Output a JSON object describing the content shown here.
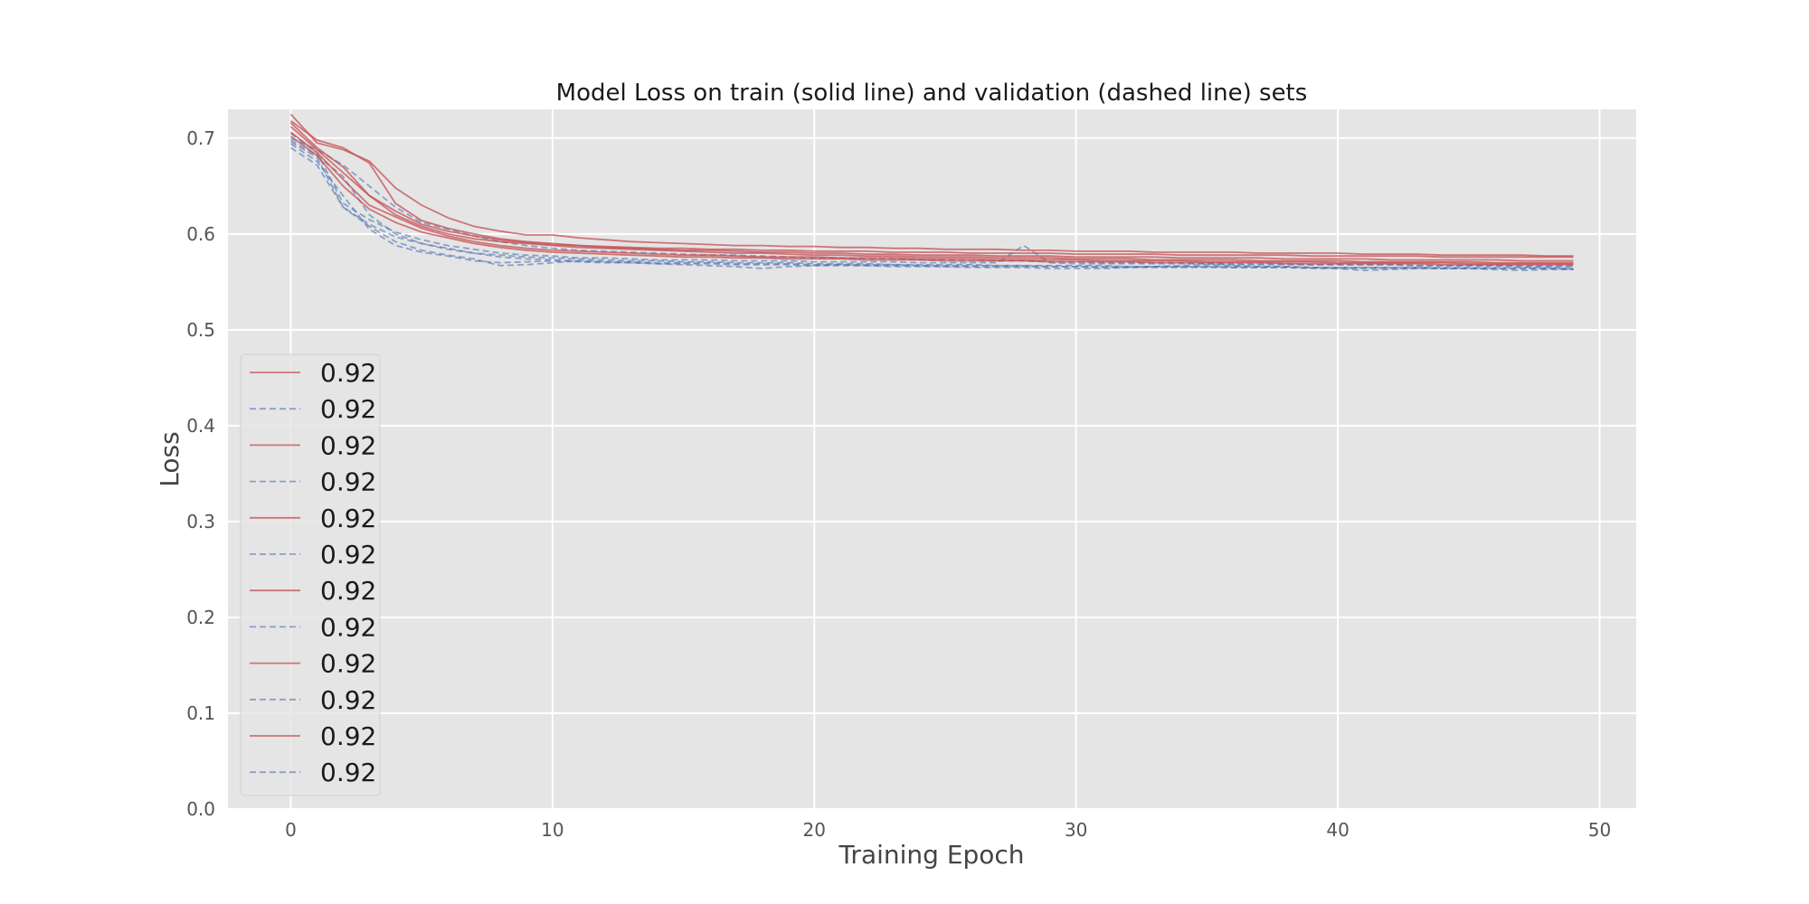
{
  "chart_data": {
    "type": "line",
    "title": "Model Loss on train (solid line) and validation (dashed line) sets",
    "xlabel": "Training Epoch",
    "ylabel": "Loss",
    "xlim": [
      -2.4,
      51.4
    ],
    "ylim": [
      0.0,
      0.73
    ],
    "xticks": [
      0,
      10,
      20,
      30,
      40,
      50
    ],
    "yticks": [
      0.0,
      0.1,
      0.2,
      0.3,
      0.4,
      0.5,
      0.6,
      0.7
    ],
    "grid": true,
    "legend_position": "lower-left",
    "train_color": "#c44e52",
    "val_color": "#4c72b0",
    "x": [
      0,
      1,
      2,
      3,
      4,
      5,
      6,
      7,
      8,
      9,
      10,
      11,
      12,
      13,
      14,
      15,
      16,
      17,
      18,
      19,
      20,
      21,
      22,
      23,
      24,
      25,
      26,
      27,
      28,
      29,
      30,
      31,
      32,
      33,
      34,
      35,
      36,
      37,
      38,
      39,
      40,
      41,
      42,
      43,
      44,
      45,
      46,
      47,
      48,
      49
    ],
    "series": [
      {
        "name": "0.92",
        "split": "train",
        "values": [
          0.725,
          0.695,
          0.688,
          0.676,
          0.648,
          0.63,
          0.617,
          0.608,
          0.603,
          0.599,
          0.599,
          0.596,
          0.594,
          0.592,
          0.591,
          0.59,
          0.589,
          0.588,
          0.588,
          0.587,
          0.587,
          0.586,
          0.586,
          0.585,
          0.585,
          0.584,
          0.584,
          0.584,
          0.583,
          0.583,
          0.582,
          0.582,
          0.582,
          0.581,
          0.581,
          0.581,
          0.581,
          0.58,
          0.58,
          0.58,
          0.58,
          0.579,
          0.579,
          0.579,
          0.578,
          0.578,
          0.578,
          0.578,
          0.577,
          0.577
        ]
      },
      {
        "name": "0.92",
        "split": "val",
        "values": [
          0.7,
          0.688,
          0.672,
          0.65,
          0.628,
          0.612,
          0.605,
          0.598,
          0.592,
          0.588,
          0.585,
          0.583,
          0.582,
          0.581,
          0.58,
          0.579,
          0.578,
          0.578,
          0.577,
          0.576,
          0.575,
          0.575,
          0.574,
          0.574,
          0.573,
          0.573,
          0.572,
          0.572,
          0.572,
          0.571,
          0.571,
          0.57,
          0.57,
          0.57,
          0.57,
          0.569,
          0.569,
          0.569,
          0.569,
          0.568,
          0.568,
          0.568,
          0.568,
          0.567,
          0.567,
          0.567,
          0.567,
          0.566,
          0.566,
          0.566
        ]
      },
      {
        "name": "0.92",
        "split": "train",
        "values": [
          0.718,
          0.698,
          0.69,
          0.674,
          0.632,
          0.614,
          0.606,
          0.6,
          0.595,
          0.592,
          0.59,
          0.588,
          0.586,
          0.585,
          0.584,
          0.583,
          0.583,
          0.582,
          0.581,
          0.581,
          0.58,
          0.58,
          0.579,
          0.579,
          0.578,
          0.578,
          0.578,
          0.577,
          0.577,
          0.577,
          0.576,
          0.576,
          0.576,
          0.576,
          0.575,
          0.575,
          0.575,
          0.575,
          0.574,
          0.574,
          0.574,
          0.574,
          0.573,
          0.573,
          0.573,
          0.573,
          0.573,
          0.572,
          0.572,
          0.572
        ]
      },
      {
        "name": "0.92",
        "split": "val",
        "values": [
          0.705,
          0.685,
          0.632,
          0.615,
          0.602,
          0.594,
          0.588,
          0.584,
          0.58,
          0.578,
          0.577,
          0.575,
          0.575,
          0.574,
          0.573,
          0.573,
          0.573,
          0.572,
          0.572,
          0.572,
          0.571,
          0.571,
          0.571,
          0.571,
          0.57,
          0.57,
          0.57,
          0.57,
          0.588,
          0.57,
          0.569,
          0.569,
          0.569,
          0.569,
          0.569,
          0.569,
          0.568,
          0.568,
          0.568,
          0.568,
          0.568,
          0.568,
          0.568,
          0.567,
          0.567,
          0.567,
          0.567,
          0.567,
          0.567,
          0.567
        ]
      },
      {
        "name": "0.92",
        "split": "train",
        "values": [
          0.712,
          0.688,
          0.664,
          0.64,
          0.62,
          0.608,
          0.6,
          0.595,
          0.592,
          0.59,
          0.588,
          0.586,
          0.585,
          0.584,
          0.583,
          0.582,
          0.581,
          0.58,
          0.58,
          0.579,
          0.578,
          0.578,
          0.577,
          0.577,
          0.576,
          0.576,
          0.576,
          0.575,
          0.575,
          0.575,
          0.574,
          0.574,
          0.574,
          0.573,
          0.573,
          0.573,
          0.573,
          0.572,
          0.572,
          0.572,
          0.572,
          0.571,
          0.571,
          0.571,
          0.571,
          0.571,
          0.57,
          0.57,
          0.57,
          0.57
        ]
      },
      {
        "name": "0.92",
        "split": "val",
        "values": [
          0.698,
          0.682,
          0.66,
          0.62,
          0.6,
          0.59,
          0.585,
          0.58,
          0.578,
          0.576,
          0.575,
          0.574,
          0.573,
          0.572,
          0.572,
          0.571,
          0.571,
          0.57,
          0.57,
          0.57,
          0.569,
          0.569,
          0.569,
          0.568,
          0.568,
          0.568,
          0.568,
          0.567,
          0.567,
          0.567,
          0.567,
          0.567,
          0.566,
          0.566,
          0.566,
          0.566,
          0.566,
          0.566,
          0.566,
          0.565,
          0.565,
          0.565,
          0.565,
          0.565,
          0.565,
          0.565,
          0.565,
          0.565,
          0.565,
          0.564
        ]
      },
      {
        "name": "0.92",
        "split": "train",
        "values": [
          0.706,
          0.685,
          0.657,
          0.63,
          0.618,
          0.606,
          0.598,
          0.592,
          0.588,
          0.585,
          0.583,
          0.582,
          0.581,
          0.58,
          0.579,
          0.578,
          0.578,
          0.577,
          0.576,
          0.576,
          0.576,
          0.575,
          0.575,
          0.575,
          0.574,
          0.574,
          0.574,
          0.573,
          0.573,
          0.573,
          0.573,
          0.572,
          0.572,
          0.572,
          0.572,
          0.571,
          0.571,
          0.571,
          0.571,
          0.571,
          0.57,
          0.57,
          0.57,
          0.57,
          0.57,
          0.569,
          0.569,
          0.569,
          0.569,
          0.569
        ]
      },
      {
        "name": "0.92",
        "split": "val",
        "values": [
          0.696,
          0.68,
          0.628,
          0.61,
          0.597,
          0.59,
          0.584,
          0.58,
          0.576,
          0.574,
          0.573,
          0.572,
          0.571,
          0.571,
          0.57,
          0.57,
          0.57,
          0.569,
          0.569,
          0.569,
          0.568,
          0.568,
          0.568,
          0.568,
          0.567,
          0.567,
          0.567,
          0.567,
          0.567,
          0.566,
          0.566,
          0.566,
          0.566,
          0.566,
          0.566,
          0.566,
          0.565,
          0.565,
          0.565,
          0.565,
          0.565,
          0.565,
          0.565,
          0.565,
          0.564,
          0.564,
          0.564,
          0.564,
          0.564,
          0.564
        ]
      },
      {
        "name": "0.92",
        "split": "train",
        "values": [
          0.702,
          0.682,
          0.65,
          0.626,
          0.612,
          0.602,
          0.596,
          0.59,
          0.586,
          0.583,
          0.581,
          0.58,
          0.579,
          0.578,
          0.577,
          0.576,
          0.576,
          0.575,
          0.575,
          0.574,
          0.574,
          0.574,
          0.573,
          0.573,
          0.573,
          0.572,
          0.572,
          0.572,
          0.572,
          0.571,
          0.571,
          0.571,
          0.571,
          0.57,
          0.57,
          0.57,
          0.57,
          0.57,
          0.569,
          0.569,
          0.569,
          0.569,
          0.569,
          0.569,
          0.568,
          0.568,
          0.568,
          0.568,
          0.568,
          0.568
        ]
      },
      {
        "name": "0.92",
        "split": "val",
        "values": [
          0.694,
          0.676,
          0.64,
          0.605,
          0.588,
          0.581,
          0.577,
          0.572,
          0.57,
          0.571,
          0.572,
          0.571,
          0.57,
          0.57,
          0.569,
          0.569,
          0.569,
          0.568,
          0.568,
          0.568,
          0.567,
          0.567,
          0.567,
          0.567,
          0.567,
          0.566,
          0.566,
          0.566,
          0.566,
          0.566,
          0.566,
          0.565,
          0.565,
          0.565,
          0.565,
          0.565,
          0.565,
          0.565,
          0.565,
          0.564,
          0.564,
          0.564,
          0.564,
          0.564,
          0.564,
          0.564,
          0.564,
          0.564,
          0.564,
          0.563
        ]
      },
      {
        "name": "0.92",
        "split": "train",
        "values": [
          0.716,
          0.69,
          0.67,
          0.64,
          0.624,
          0.61,
          0.603,
          0.598,
          0.594,
          0.591,
          0.589,
          0.588,
          0.587,
          0.586,
          0.585,
          0.585,
          0.584,
          0.584,
          0.583,
          0.583,
          0.582,
          0.582,
          0.582,
          0.581,
          0.581,
          0.581,
          0.58,
          0.58,
          0.58,
          0.58,
          0.579,
          0.579,
          0.579,
          0.579,
          0.578,
          0.578,
          0.578,
          0.578,
          0.578,
          0.577,
          0.577,
          0.577,
          0.577,
          0.577,
          0.576,
          0.576,
          0.576,
          0.576,
          0.576,
          0.576
        ]
      },
      {
        "name": "0.92",
        "split": "val",
        "values": [
          0.69,
          0.672,
          0.628,
          0.608,
          0.592,
          0.583,
          0.578,
          0.574,
          0.567,
          0.568,
          0.57,
          0.572,
          0.571,
          0.57,
          0.569,
          0.568,
          0.567,
          0.566,
          0.564,
          0.566,
          0.567,
          0.568,
          0.567,
          0.566,
          0.566,
          0.566,
          0.565,
          0.565,
          0.565,
          0.564,
          0.564,
          0.564,
          0.565,
          0.566,
          0.567,
          0.568,
          0.567,
          0.566,
          0.566,
          0.565,
          0.564,
          0.562,
          0.563,
          0.564,
          0.564,
          0.564,
          0.563,
          0.562,
          0.563,
          0.563
        ]
      }
    ]
  }
}
